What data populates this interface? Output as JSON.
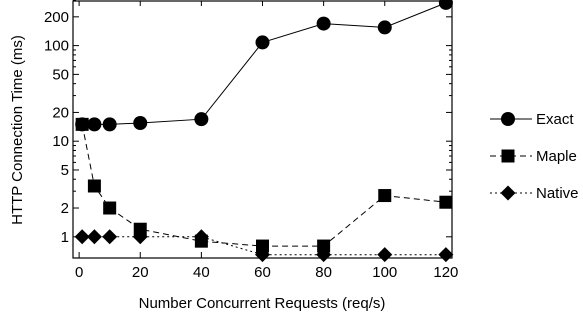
{
  "chart_data": {
    "type": "line",
    "xlabel": "Number Concurrent Requests (req/s)",
    "ylabel": "HTTP Connection Time (ms)",
    "x_scale": "linear",
    "y_scale": "log",
    "xlim": [
      -2,
      122
    ],
    "ylim": [
      0.6,
      300
    ],
    "x_ticks": [
      0,
      20,
      40,
      60,
      80,
      100,
      120
    ],
    "x_tick_labels": [
      "0",
      "20",
      "40",
      "60",
      "80",
      "100",
      "120"
    ],
    "y_ticks": [
      1,
      2,
      5,
      10,
      20,
      50,
      100,
      200
    ],
    "y_tick_labels": [
      "1",
      "2",
      "5",
      "10",
      "20",
      "50",
      "100",
      "200"
    ],
    "grid": false,
    "legend_position": "right",
    "series": [
      {
        "name": "Exact",
        "marker": "circle",
        "line_style": "solid",
        "x": [
          1,
          5,
          10,
          20,
          40,
          60,
          80,
          100,
          120
        ],
        "y": [
          15,
          15,
          15,
          15.5,
          17,
          108,
          170,
          155,
          280
        ]
      },
      {
        "name": "Maple",
        "marker": "square",
        "line_style": "dashed",
        "x": [
          1,
          5,
          10,
          20,
          40,
          60,
          80,
          100,
          120
        ],
        "y": [
          15,
          3.4,
          2,
          1.2,
          0.9,
          0.8,
          0.8,
          2.7,
          2.3
        ]
      },
      {
        "name": "Native",
        "marker": "diamond",
        "line_style": "dotted",
        "x": [
          1,
          5,
          10,
          20,
          40,
          60,
          80,
          100,
          120
        ],
        "y": [
          1,
          1,
          1,
          1,
          1,
          0.65,
          0.65,
          0.65,
          0.65
        ]
      }
    ]
  }
}
